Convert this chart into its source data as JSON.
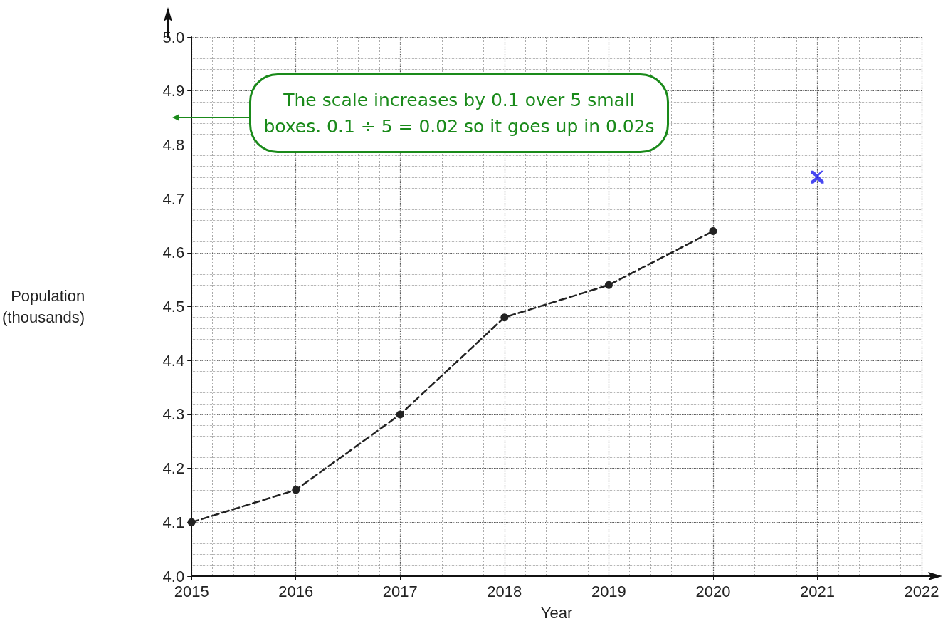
{
  "chart_data": {
    "type": "line",
    "xlabel": "Year",
    "ylabel": "Population\n(thousands)",
    "x": [
      2015,
      2016,
      2017,
      2018,
      2019,
      2020
    ],
    "series": [
      {
        "color": "#222222",
        "line_style": "dashed",
        "marker": "circle",
        "values": [
          4.1,
          4.16,
          4.3,
          4.48,
          4.54,
          4.64
        ]
      },
      {
        "type": "scatter",
        "color": "#1a1aee",
        "marker": "cross",
        "x": [
          2021
        ],
        "values": [
          4.74
        ]
      }
    ],
    "xlim": [
      2015,
      2022
    ],
    "xticks": [
      2015,
      2016,
      2017,
      2018,
      2019,
      2020,
      2021,
      2022
    ],
    "ylim": [
      4.0,
      5.0
    ],
    "yticks": [
      {
        "value": 4.0,
        "label": "4.0"
      },
      {
        "value": 4.1,
        "label": "4.1"
      },
      {
        "value": 4.2,
        "label": "4.2"
      },
      {
        "value": 4.3,
        "label": "4.3"
      },
      {
        "value": 4.4,
        "label": "4.4"
      },
      {
        "value": 4.5,
        "label": "4.5"
      },
      {
        "value": 4.6,
        "label": "4.6"
      },
      {
        "value": 4.7,
        "label": "4.7"
      },
      {
        "value": 4.8,
        "label": "4.8"
      },
      {
        "value": 4.9,
        "label": "4.9"
      },
      {
        "value": 5.0,
        "label": "5.0"
      }
    ],
    "grid": true,
    "annotations": [
      "The scale increases by 0.1 over 5 small boxes. 0.1 ÷ 5 = 0.02 so it goes up in 0.02s"
    ]
  }
}
